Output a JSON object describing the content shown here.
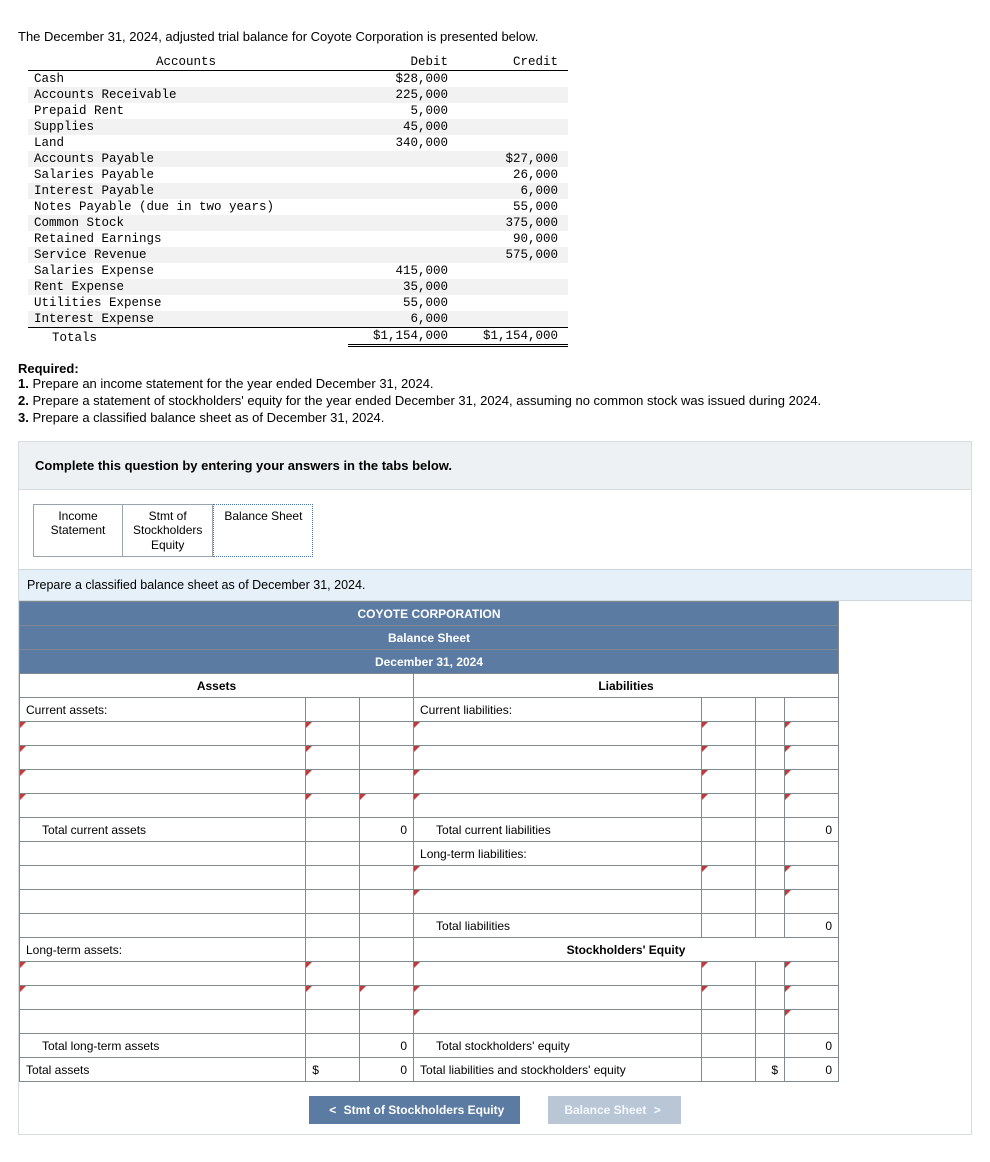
{
  "intro": "The December 31, 2024, adjusted trial balance for Coyote Corporation is presented below.",
  "trial_balance": {
    "columns": [
      "Accounts",
      "Debit",
      "Credit"
    ],
    "rows": [
      {
        "acct": "Cash",
        "debit": "$28,000",
        "credit": ""
      },
      {
        "acct": "Accounts Receivable",
        "debit": "225,000",
        "credit": ""
      },
      {
        "acct": "Prepaid Rent",
        "debit": "5,000",
        "credit": ""
      },
      {
        "acct": "Supplies",
        "debit": "45,000",
        "credit": ""
      },
      {
        "acct": "Land",
        "debit": "340,000",
        "credit": ""
      },
      {
        "acct": "Accounts Payable",
        "debit": "",
        "credit": "$27,000"
      },
      {
        "acct": "Salaries Payable",
        "debit": "",
        "credit": "26,000"
      },
      {
        "acct": "Interest Payable",
        "debit": "",
        "credit": "6,000"
      },
      {
        "acct": "Notes Payable (due in two years)",
        "debit": "",
        "credit": "55,000"
      },
      {
        "acct": "Common Stock",
        "debit": "",
        "credit": "375,000"
      },
      {
        "acct": "Retained Earnings",
        "debit": "",
        "credit": "90,000"
      },
      {
        "acct": "Service Revenue",
        "debit": "",
        "credit": "575,000"
      },
      {
        "acct": "Salaries Expense",
        "debit": "415,000",
        "credit": ""
      },
      {
        "acct": "Rent Expense",
        "debit": "35,000",
        "credit": ""
      },
      {
        "acct": "Utilities Expense",
        "debit": "55,000",
        "credit": ""
      },
      {
        "acct": "Interest Expense",
        "debit": "6,000",
        "credit": ""
      }
    ],
    "totals_label": "Totals",
    "totals_debit": "$1,154,000",
    "totals_credit": "$1,154,000",
    "alt_row_bg": "#f2f2f2"
  },
  "required": {
    "heading": "Required:",
    "items": [
      "1. Prepare an income statement for the year ended December 31, 2024.",
      "2. Prepare a statement of stockholders' equity for the year ended December 31, 2024, assuming no common stock was issued during 2024.",
      "3. Prepare a classified balance sheet as of December 31, 2024."
    ]
  },
  "banner": "Complete this question by entering your answers in the tabs below.",
  "tabs": {
    "income": "Income Statement",
    "equity": "Stmt of Stockholders Equity",
    "balance": "Balance Sheet"
  },
  "subhead": "Prepare a classified balance sheet as of December 31, 2024.",
  "bs": {
    "title": "COYOTE CORPORATION",
    "subtitle": "Balance Sheet",
    "date": "December 31, 2024",
    "assets_hdr": "Assets",
    "liab_hdr": "Liabilities",
    "current_assets": "Current assets:",
    "total_current_assets": "Total current assets",
    "long_term_assets": "Long-term assets:",
    "total_long_term_assets": "Total long-term assets",
    "total_assets": "Total assets",
    "current_liab": "Current liabilities:",
    "total_current_liab": "Total current liabilities",
    "long_term_liab": "Long-term liabilities:",
    "total_liab": "Total liabilities",
    "se_hdr": "Stockholders' Equity",
    "total_se": "Total stockholders' equity",
    "total_liab_se": "Total liabilities and stockholders' equity",
    "zero": "0",
    "dollar": "$",
    "header_bg": "#5b7ba3",
    "header_color": "#ffffff",
    "dd_triangle_color": "#c23b3b",
    "border_color": "#808890"
  },
  "nav": {
    "prev": "Stmt of Stockholders Equity",
    "next": "Balance Sheet",
    "prev_glyph": "<",
    "next_glyph": ">"
  }
}
